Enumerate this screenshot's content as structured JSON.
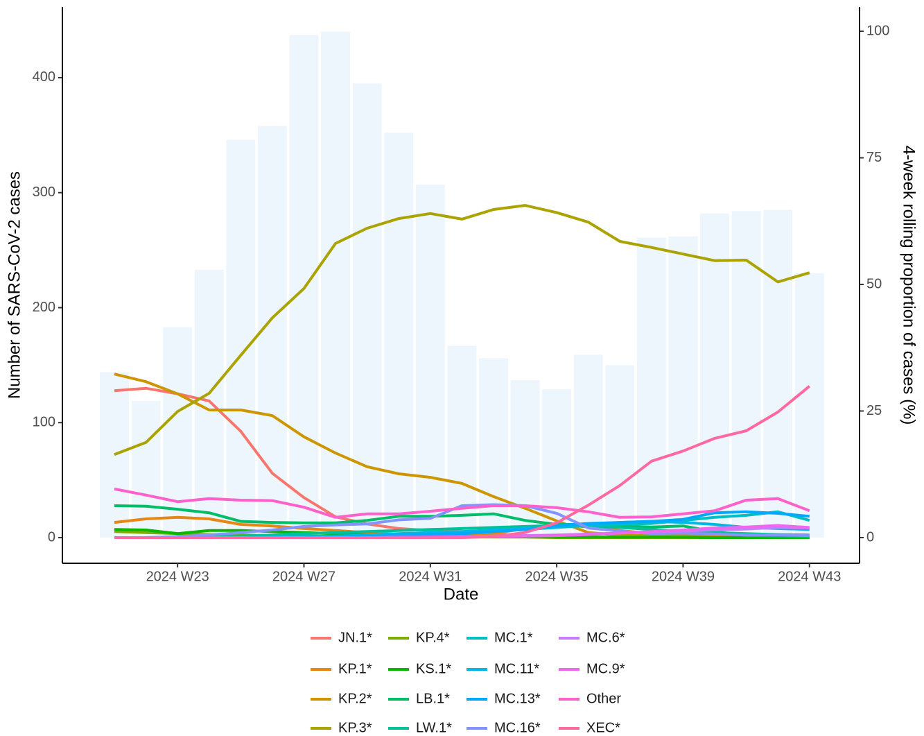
{
  "chart_data": {
    "type": "bar",
    "x_label": "Date",
    "y_label": "Number of SARS-CoV-2 cases",
    "y2_label": "4-week rolling proportion of cases (%)",
    "categories": [
      null,
      null,
      "2024 W23",
      null,
      null,
      null,
      "2024 W27",
      null,
      null,
      null,
      "2024 W31",
      null,
      null,
      null,
      "2024 W35",
      null,
      null,
      null,
      "2024 W39",
      null,
      null,
      null,
      "2024 W43"
    ],
    "values": [
      144,
      119,
      183,
      233,
      346,
      358,
      437,
      440,
      395,
      352,
      307,
      167,
      156,
      137,
      129,
      159,
      150,
      261,
      262,
      282,
      284,
      285,
      230
    ],
    "color": "#eef6fd",
    "ylim": [
      -22.3,
      461.5
    ],
    "yticks": [
      0,
      100,
      200,
      300,
      400
    ],
    "y2lim": [
      -5.07,
      104.8
    ],
    "y2ticks": [
      0,
      25,
      50,
      75,
      100
    ],
    "grid": false,
    "legend": "bottom",
    "series": [
      {
        "name": "JN.1*",
        "color": "#F8766D",
        "axis": "y2",
        "values": [
          29,
          29.5,
          28.4,
          27,
          21,
          12.7,
          7.9,
          4.1,
          2.7,
          1.8,
          1.4,
          1.2,
          0.7,
          0.4,
          0.2,
          0.1,
          0.1,
          0,
          0,
          0,
          0,
          0,
          0
        ]
      },
      {
        "name": "KP.1*",
        "color": "#E68613",
        "axis": "y2",
        "values": [
          3,
          3.7,
          4,
          3.7,
          2.6,
          2.3,
          1.8,
          1.4,
          1,
          0.7,
          0.4,
          0.3,
          0.8,
          1.8,
          2.7,
          2.1,
          1.4,
          0.8,
          0.5,
          0.5,
          0.4,
          0.3,
          0.3
        ]
      },
      {
        "name": "KP.2*",
        "color": "#CD9600",
        "axis": "y2",
        "values": [
          32.3,
          30.8,
          28.4,
          25.2,
          25.2,
          24.1,
          19.9,
          16.7,
          14,
          12.6,
          11.9,
          10.7,
          8.1,
          5.8,
          3.3,
          1,
          0.5,
          0.4,
          0.3,
          0.1,
          0,
          0,
          0
        ]
      },
      {
        "name": "KP.3*",
        "color": "#ABA300",
        "axis": "y2",
        "values": [
          16.4,
          18.8,
          24.9,
          28.5,
          36,
          43.4,
          49.2,
          58.1,
          61.1,
          63,
          64,
          62.9,
          64.8,
          65.6,
          64.2,
          62.3,
          58.5,
          57.3,
          56,
          54.7,
          54.8,
          50.5,
          52.3
        ]
      },
      {
        "name": "KP.4*",
        "color": "#7CAE00",
        "axis": "y2",
        "values": [
          1.2,
          1,
          0.8,
          0.6,
          0.5,
          0.4,
          0.3,
          0.3,
          0.2,
          0.2,
          0.1,
          0.1,
          0.1,
          0.1,
          0,
          0,
          0,
          0,
          0,
          0,
          0,
          0,
          0
        ]
      },
      {
        "name": "KS.1*",
        "color": "#0CB702",
        "axis": "y2",
        "values": [
          1.6,
          1.5,
          0.8,
          1.4,
          1.4,
          1.2,
          1,
          0.8,
          0.5,
          0.4,
          0.3,
          0.3,
          0.2,
          0.2,
          0.1,
          0.1,
          0.1,
          0.1,
          0.1,
          0,
          0,
          0,
          0
        ]
      },
      {
        "name": "LB.1*",
        "color": "#00BE67",
        "axis": "y2",
        "values": [
          6.3,
          6.2,
          5.6,
          4.9,
          3.2,
          3,
          2.9,
          2.9,
          3.4,
          4.2,
          4.2,
          4.4,
          4.7,
          3.4,
          2.6,
          2.6,
          2.3,
          2.1,
          2.3,
          1.2,
          0.4,
          0.3,
          0.1
        ]
      },
      {
        "name": "LW.1*",
        "color": "#00C19A",
        "axis": "y2",
        "values": [
          0,
          0,
          0.1,
          0.2,
          0.3,
          0.5,
          0.8,
          1,
          1.2,
          1.4,
          1.6,
          1.8,
          2,
          2.2,
          2.4,
          2.2,
          2,
          1.6,
          1.2,
          1,
          0.8,
          0.6,
          0.5
        ]
      },
      {
        "name": "MC.1*",
        "color": "#00BFC4",
        "axis": "y2",
        "values": [
          0,
          0,
          0,
          0,
          0,
          0,
          0,
          0.1,
          0.2,
          0.3,
          0.5,
          0.8,
          1.2,
          1.6,
          2,
          2.4,
          2.6,
          2.8,
          3.4,
          4,
          4.4,
          5.1,
          3.4
        ]
      },
      {
        "name": "MC.11*",
        "color": "#00B8E7",
        "axis": "y2",
        "values": [
          0,
          0,
          0,
          0,
          0,
          0.1,
          0.2,
          0.3,
          0.5,
          0.8,
          1,
          1.2,
          1.5,
          1.8,
          2.2,
          2.6,
          3,
          3.2,
          3,
          2.6,
          2,
          1.8,
          1.6
        ]
      },
      {
        "name": "MC.13*",
        "color": "#00A9FF",
        "axis": "y2",
        "values": [
          0,
          0,
          0,
          0,
          0,
          0,
          0,
          0.1,
          0.2,
          0.4,
          0.6,
          0.8,
          1.2,
          1.6,
          2.4,
          2.8,
          3,
          3.2,
          3.6,
          4.9,
          5.1,
          4.8,
          4.2
        ]
      },
      {
        "name": "MC.16*",
        "color": "#8494FF",
        "axis": "y2",
        "values": [
          0,
          0,
          0.2,
          0.5,
          1,
          1.5,
          2.2,
          2.5,
          2.7,
          3.5,
          3.8,
          6.3,
          6.5,
          6.3,
          4.8,
          1.9,
          1.3,
          0.8,
          0.9,
          0.7,
          0.5,
          0.5,
          0.4
        ]
      },
      {
        "name": "MC.6*",
        "color": "#C77CFF",
        "axis": "y2",
        "values": [
          0,
          0,
          0,
          0,
          0,
          0,
          0,
          0,
          0,
          0.1,
          0.1,
          0.2,
          0.3,
          0.4,
          0.5,
          0.7,
          0.9,
          1.1,
          1.3,
          1.5,
          1.7,
          2,
          1.9
        ]
      },
      {
        "name": "MC.9*",
        "color": "#ED68ED",
        "axis": "y2",
        "values": [
          0,
          0,
          0,
          0,
          0,
          0,
          0,
          0,
          0,
          0,
          0.1,
          0.1,
          0.2,
          0.3,
          0.4,
          0.6,
          0.9,
          1.2,
          1.5,
          1.9,
          2.1,
          2.4,
          2
        ]
      },
      {
        "name": "Other",
        "color": "#FF61CC",
        "axis": "y2",
        "values": [
          9.6,
          8.4,
          7.1,
          7.7,
          7.4,
          7.3,
          6,
          4,
          4.7,
          4.7,
          5.2,
          5.8,
          6.3,
          6.3,
          5.9,
          5.1,
          4,
          4.1,
          4.7,
          5.3,
          7.4,
          7.7,
          5.3
        ]
      },
      {
        "name": "XEC*",
        "color": "#FF68A1",
        "axis": "y2",
        "values": [
          0,
          0,
          0,
          0,
          0,
          0,
          0,
          0,
          0,
          0,
          0,
          0,
          0.2,
          1,
          2.9,
          6.4,
          10.3,
          15.1,
          17.1,
          19.6,
          21.1,
          24.8,
          29.9
        ]
      }
    ]
  }
}
